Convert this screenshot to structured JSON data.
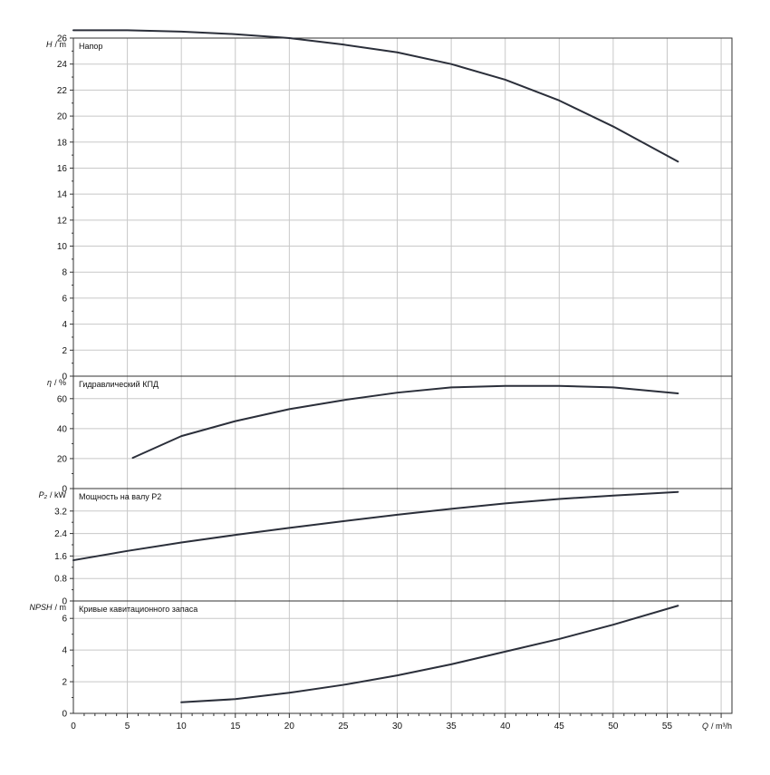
{
  "chart_data": [
    {
      "type": "line",
      "title": "Напор",
      "ylabel_symbol": "H",
      "ylabel_unit": "/ m",
      "ylim": [
        0,
        26
      ],
      "y_ticks": [
        "0",
        "2",
        "4",
        "6",
        "8",
        "10",
        "12",
        "14",
        "16",
        "18",
        "20",
        "22",
        "24",
        "26"
      ],
      "grid": true,
      "color": "#2b2f3a",
      "series": [
        {
          "x": [
            0,
            5,
            10,
            15,
            20,
            25,
            30,
            35,
            40,
            45,
            50,
            56
          ],
          "y": [
            26.6,
            26.6,
            26.5,
            26.3,
            26.0,
            25.5,
            24.9,
            24.0,
            22.8,
            21.2,
            19.2,
            16.5
          ]
        }
      ]
    },
    {
      "type": "line",
      "title": "Гидравлический КПД",
      "ylabel_symbol": "η",
      "ylabel_unit": "/ %",
      "ylim": [
        0,
        75
      ],
      "y_ticks": [
        "0",
        "20",
        "40",
        "60"
      ],
      "grid": true,
      "color": "#2b2f3a",
      "series": [
        {
          "x": [
            5.5,
            10,
            15,
            20,
            25,
            30,
            35,
            40,
            45,
            50,
            56
          ],
          "y": [
            20.5,
            35,
            45,
            53,
            59,
            64,
            67.5,
            68.5,
            68.5,
            67.5,
            63.5
          ]
        }
      ]
    },
    {
      "type": "line",
      "title": "Мощность на валу P2",
      "ylabel_symbol": "P₂",
      "ylabel_unit": "/ kW",
      "ylim": [
        0,
        4.0
      ],
      "y_ticks": [
        "0",
        "0.8",
        "1.6",
        "2.4",
        "3.2"
      ],
      "grid": true,
      "color": "#2b2f3a",
      "series": [
        {
          "x": [
            0,
            5,
            10,
            15,
            20,
            25,
            30,
            35,
            40,
            45,
            50,
            56
          ],
          "y": [
            1.45,
            1.78,
            2.08,
            2.35,
            2.6,
            2.84,
            3.07,
            3.28,
            3.47,
            3.63,
            3.75,
            3.88
          ]
        }
      ]
    },
    {
      "type": "line",
      "title": "Кривые кавитационного запаса",
      "ylabel_symbol": "NPSH",
      "ylabel_unit": "/ m",
      "ylim": [
        0,
        7.1
      ],
      "y_ticks": [
        "0",
        "2",
        "4",
        "6"
      ],
      "grid": true,
      "color": "#2b2f3a",
      "series": [
        {
          "x": [
            10,
            15,
            20,
            25,
            30,
            35,
            40,
            45,
            50,
            56
          ],
          "y": [
            0.7,
            0.9,
            1.3,
            1.8,
            2.4,
            3.1,
            3.9,
            4.7,
            5.6,
            6.8
          ]
        }
      ]
    }
  ],
  "x_axis": {
    "label_symbol": "Q",
    "label_unit": "/ m³/h",
    "xlim": [
      0,
      61
    ],
    "ticks": [
      "0",
      "5",
      "10",
      "15",
      "20",
      "25",
      "30",
      "35",
      "40",
      "45",
      "50",
      "55"
    ]
  }
}
